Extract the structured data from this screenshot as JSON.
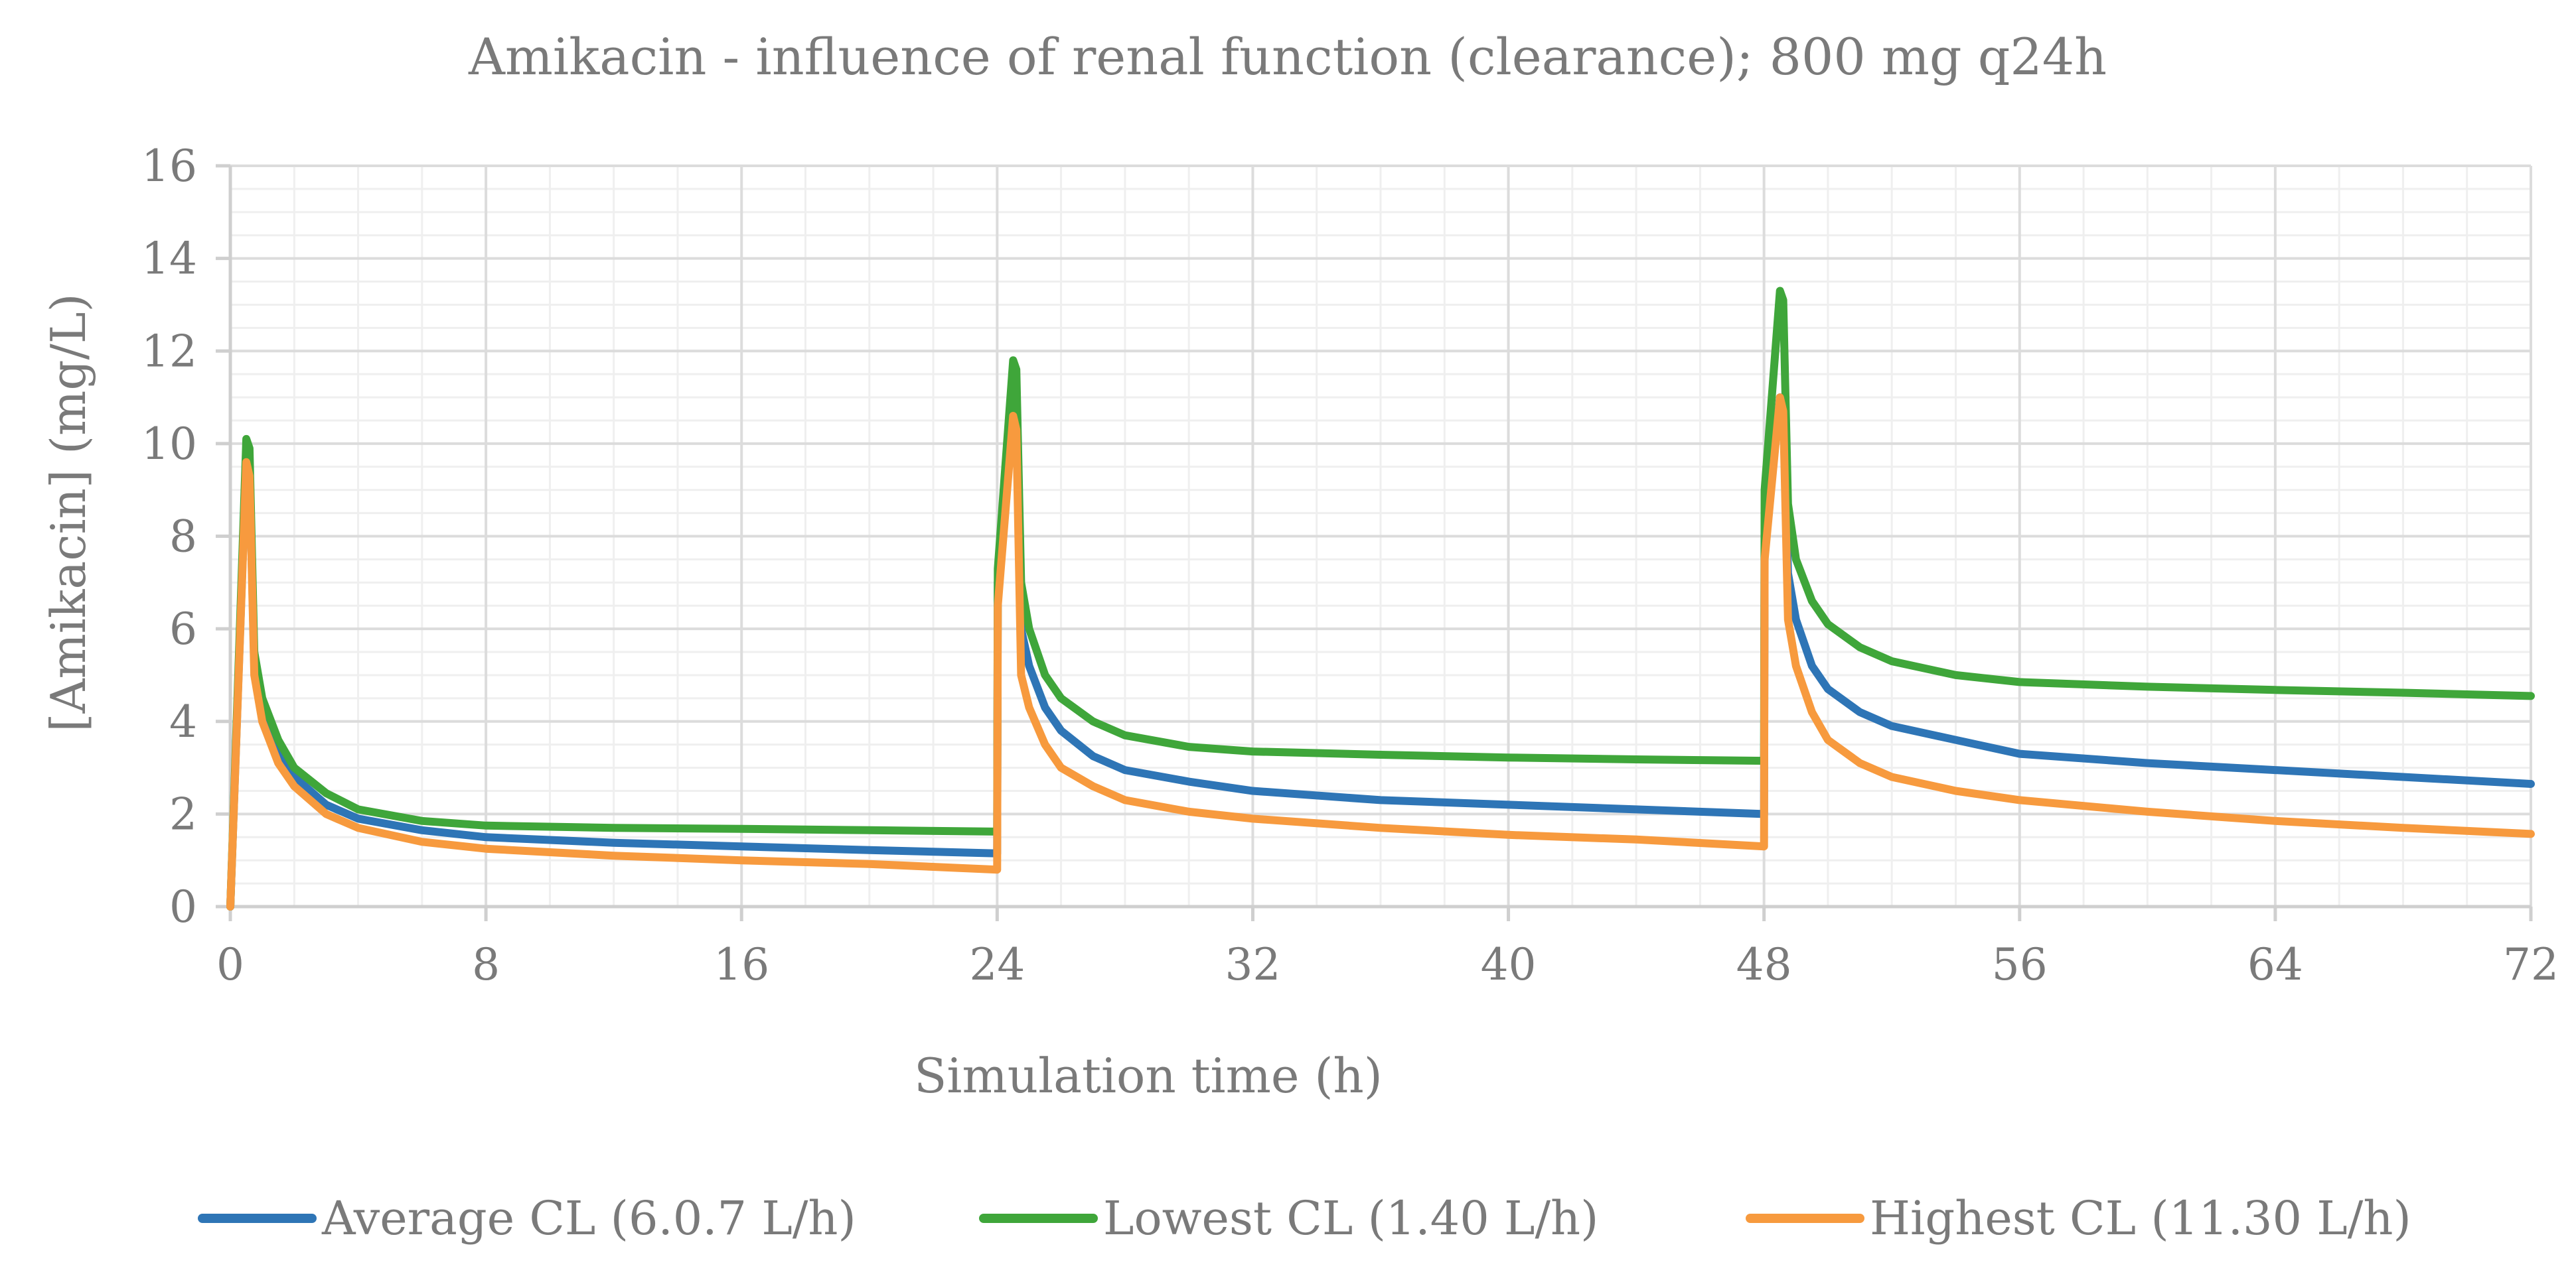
{
  "chart_data": {
    "type": "line",
    "title": "Amikacin - influence of renal function (clearance); 800 mg q24h",
    "xlabel": "Simulation time (h)",
    "ylabel": "[Amikacin] (mg/L)",
    "xlim": [
      0,
      72
    ],
    "ylim": [
      0,
      16
    ],
    "xticks": [
      "0",
      "8",
      "16",
      "24",
      "32",
      "40",
      "48",
      "56",
      "64",
      "72"
    ],
    "yticks": [
      "0",
      "2",
      "4",
      "6",
      "8",
      "10",
      "12",
      "14",
      "16"
    ],
    "grid": true,
    "legend_position": "bottom",
    "series": [
      {
        "name": "Average CL (6.0.7 L/h)",
        "color": "#2e75b6",
        "points": [
          [
            0,
            0
          ],
          [
            0.5,
            9.7
          ],
          [
            0.6,
            9.4
          ],
          [
            0.75,
            5.2
          ],
          [
            1,
            4.2
          ],
          [
            1.5,
            3.3
          ],
          [
            2,
            2.8
          ],
          [
            3,
            2.2
          ],
          [
            4,
            1.9
          ],
          [
            6,
            1.65
          ],
          [
            8,
            1.5
          ],
          [
            12,
            1.38
          ],
          [
            16,
            1.3
          ],
          [
            20,
            1.22
          ],
          [
            24,
            1.15
          ],
          [
            24.02,
            7.0
          ],
          [
            24.5,
            10.5
          ],
          [
            24.6,
            10.3
          ],
          [
            24.75,
            6.0
          ],
          [
            25,
            5.2
          ],
          [
            25.5,
            4.3
          ],
          [
            26,
            3.8
          ],
          [
            27,
            3.25
          ],
          [
            28,
            2.95
          ],
          [
            30,
            2.7
          ],
          [
            32,
            2.5
          ],
          [
            36,
            2.3
          ],
          [
            40,
            2.2
          ],
          [
            44,
            2.1
          ],
          [
            48,
            2.0
          ],
          [
            48.02,
            8.0
          ],
          [
            48.5,
            11.0
          ],
          [
            48.6,
            10.8
          ],
          [
            48.75,
            7.2
          ],
          [
            49,
            6.2
          ],
          [
            49.5,
            5.2
          ],
          [
            50,
            4.7
          ],
          [
            51,
            4.2
          ],
          [
            52,
            3.9
          ],
          [
            54,
            3.6
          ],
          [
            56,
            3.3
          ],
          [
            60,
            3.1
          ],
          [
            64,
            2.95
          ],
          [
            68,
            2.8
          ],
          [
            72,
            2.65
          ]
        ]
      },
      {
        "name": "Lowest CL (1.40 L/h)",
        "color": "#3fa63a",
        "points": [
          [
            0,
            0
          ],
          [
            0.5,
            10.1
          ],
          [
            0.6,
            9.9
          ],
          [
            0.75,
            5.5
          ],
          [
            1,
            4.5
          ],
          [
            1.5,
            3.6
          ],
          [
            2,
            3.0
          ],
          [
            3,
            2.45
          ],
          [
            4,
            2.1
          ],
          [
            6,
            1.85
          ],
          [
            8,
            1.75
          ],
          [
            12,
            1.7
          ],
          [
            16,
            1.68
          ],
          [
            20,
            1.65
          ],
          [
            24,
            1.62
          ],
          [
            24.02,
            7.3
          ],
          [
            24.5,
            11.8
          ],
          [
            24.6,
            11.6
          ],
          [
            24.75,
            7.0
          ],
          [
            25,
            6.0
          ],
          [
            25.5,
            5.0
          ],
          [
            26,
            4.5
          ],
          [
            27,
            4.0
          ],
          [
            28,
            3.7
          ],
          [
            30,
            3.45
          ],
          [
            32,
            3.35
          ],
          [
            36,
            3.28
          ],
          [
            40,
            3.22
          ],
          [
            44,
            3.18
          ],
          [
            48,
            3.15
          ],
          [
            48.02,
            9.0
          ],
          [
            48.5,
            13.3
          ],
          [
            48.6,
            13.1
          ],
          [
            48.75,
            8.7
          ],
          [
            49,
            7.5
          ],
          [
            49.5,
            6.6
          ],
          [
            50,
            6.1
          ],
          [
            51,
            5.6
          ],
          [
            52,
            5.3
          ],
          [
            54,
            5.0
          ],
          [
            56,
            4.85
          ],
          [
            60,
            4.75
          ],
          [
            64,
            4.68
          ],
          [
            68,
            4.62
          ],
          [
            72,
            4.55
          ]
        ]
      },
      {
        "name": "Highest CL (11.30 L/h)",
        "color": "#f79a3e",
        "points": [
          [
            0,
            0
          ],
          [
            0.5,
            9.6
          ],
          [
            0.6,
            9.3
          ],
          [
            0.75,
            5.0
          ],
          [
            1,
            4.0
          ],
          [
            1.5,
            3.1
          ],
          [
            2,
            2.6
          ],
          [
            3,
            2.0
          ],
          [
            4,
            1.7
          ],
          [
            6,
            1.4
          ],
          [
            8,
            1.25
          ],
          [
            12,
            1.1
          ],
          [
            16,
            1.0
          ],
          [
            20,
            0.92
          ],
          [
            24,
            0.8
          ],
          [
            24.02,
            6.5
          ],
          [
            24.5,
            10.6
          ],
          [
            24.6,
            10.3
          ],
          [
            24.75,
            5.0
          ],
          [
            25,
            4.3
          ],
          [
            25.5,
            3.5
          ],
          [
            26,
            3.0
          ],
          [
            27,
            2.6
          ],
          [
            28,
            2.3
          ],
          [
            30,
            2.05
          ],
          [
            32,
            1.9
          ],
          [
            36,
            1.7
          ],
          [
            40,
            1.55
          ],
          [
            44,
            1.45
          ],
          [
            48,
            1.3
          ],
          [
            48.02,
            7.5
          ],
          [
            48.5,
            11.0
          ],
          [
            48.6,
            10.7
          ],
          [
            48.75,
            6.2
          ],
          [
            49,
            5.2
          ],
          [
            49.5,
            4.2
          ],
          [
            50,
            3.6
          ],
          [
            51,
            3.1
          ],
          [
            52,
            2.8
          ],
          [
            54,
            2.5
          ],
          [
            56,
            2.3
          ],
          [
            60,
            2.05
          ],
          [
            64,
            1.85
          ],
          [
            68,
            1.7
          ],
          [
            72,
            1.57
          ]
        ]
      }
    ]
  }
}
